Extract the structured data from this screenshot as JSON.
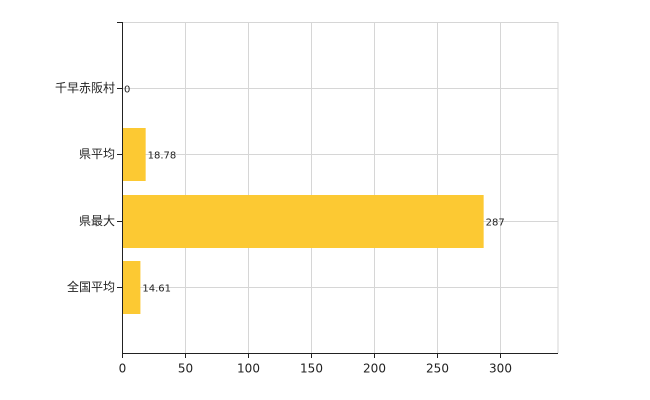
{
  "chart_data": {
    "type": "barh",
    "categories": [
      "千早赤阪村",
      "県平均",
      "県最大",
      "全国平均"
    ],
    "values": [
      0,
      18.78,
      287,
      14.61
    ],
    "color": "#fcc933",
    "xlim": [
      0,
      346
    ],
    "xticks": [
      0,
      50,
      100,
      150,
      200,
      250,
      300
    ],
    "grid": true
  }
}
